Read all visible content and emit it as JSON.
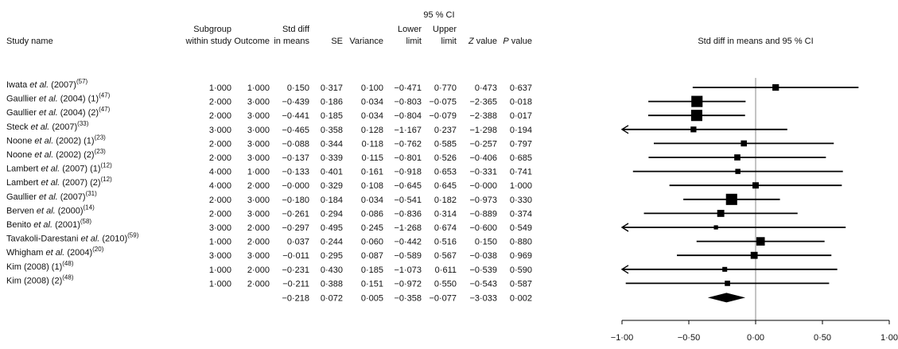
{
  "headers": {
    "ci": "95 % CI",
    "columns": [
      [
        "Study name"
      ],
      [
        "Subgroup",
        "within study"
      ],
      [
        "Outcome"
      ],
      [
        "Std diff",
        "in means"
      ],
      [
        "SE"
      ],
      [
        "Variance"
      ],
      [
        "Lower",
        "limit"
      ],
      [
        "Upper",
        "limit"
      ]
    ],
    "z": {
      "italic": "Z",
      "rest": "value"
    },
    "p": {
      "italic": "P",
      "rest": "value"
    },
    "plot": "Std diff in means and 95 % CI"
  },
  "table": {
    "rows": [
      {
        "study": {
          "name": "Iwata",
          "etal": "et al.",
          "year": "(2007)",
          "sup": "(57)"
        },
        "cells": [
          {
            "value": 1,
            "label": "1·000"
          },
          {
            "value": 1,
            "label": "1·000"
          },
          {
            "value": 0.15,
            "label": "0·150"
          },
          {
            "value": 0.317,
            "label": "0·317"
          },
          {
            "value": 0.1,
            "label": "0·100"
          },
          {
            "value": -0.471,
            "label": "−0·471"
          },
          {
            "value": 0.77,
            "label": "0·770"
          },
          {
            "value": 0.473,
            "label": "0·473"
          },
          {
            "value": 0.637,
            "label": "0·637"
          }
        ]
      },
      {
        "study": {
          "name": "Gaullier",
          "etal": "et al.",
          "year": "(2004) (1)",
          "sup": "(47)"
        },
        "cells": [
          {
            "value": 2,
            "label": "2·000"
          },
          {
            "value": 3,
            "label": "3·000"
          },
          {
            "value": -0.439,
            "label": "−0·439"
          },
          {
            "value": 0.186,
            "label": "0·186"
          },
          {
            "value": 0.034,
            "label": "0·034"
          },
          {
            "value": -0.803,
            "label": "−0·803"
          },
          {
            "value": -0.075,
            "label": "−0·075"
          },
          {
            "value": -2.365,
            "label": "−2·365"
          },
          {
            "value": 0.018,
            "label": "0·018"
          }
        ]
      },
      {
        "study": {
          "name": "Gaullier",
          "etal": "et al.",
          "year": "(2004) (2)",
          "sup": "(47)"
        },
        "cells": [
          {
            "value": 2,
            "label": "2·000"
          },
          {
            "value": 3,
            "label": "3·000"
          },
          {
            "value": -0.441,
            "label": "−0·441"
          },
          {
            "value": 0.185,
            "label": "0·185"
          },
          {
            "value": 0.034,
            "label": "0·034"
          },
          {
            "value": -0.804,
            "label": "−0·804"
          },
          {
            "value": -0.079,
            "label": "−0·079"
          },
          {
            "value": -2.388,
            "label": "−2·388"
          },
          {
            "value": 0.017,
            "label": "0·017"
          }
        ]
      },
      {
        "study": {
          "name": "Steck",
          "etal": "et al.",
          "year": "(2007)",
          "sup": "(33)"
        },
        "cells": [
          {
            "value": 3,
            "label": "3·000"
          },
          {
            "value": 3,
            "label": "3·000"
          },
          {
            "value": -0.465,
            "label": "−0·465"
          },
          {
            "value": 0.358,
            "label": "0·358"
          },
          {
            "value": 0.128,
            "label": "0·128"
          },
          {
            "value": -1.167,
            "label": "−1·167"
          },
          {
            "value": 0.237,
            "label": "0·237"
          },
          {
            "value": -1.298,
            "label": "−1·298"
          },
          {
            "value": 0.194,
            "label": "0·194"
          }
        ]
      },
      {
        "study": {
          "name": "Noone",
          "etal": "et al.",
          "year": "(2002) (1)",
          "sup": "(23)"
        },
        "cells": [
          {
            "value": 2,
            "label": "2·000"
          },
          {
            "value": 3,
            "label": "3·000"
          },
          {
            "value": -0.088,
            "label": "−0·088"
          },
          {
            "value": 0.344,
            "label": "0·344"
          },
          {
            "value": 0.118,
            "label": "0·118"
          },
          {
            "value": -0.762,
            "label": "−0·762"
          },
          {
            "value": 0.585,
            "label": "0·585"
          },
          {
            "value": -0.257,
            "label": "−0·257"
          },
          {
            "value": 0.797,
            "label": "0·797"
          }
        ]
      },
      {
        "study": {
          "name": "Noone",
          "etal": "et al.",
          "year": "(2002) (2)",
          "sup": "(23)"
        },
        "cells": [
          {
            "value": 2,
            "label": "2·000"
          },
          {
            "value": 3,
            "label": "3·000"
          },
          {
            "value": -0.137,
            "label": "−0·137"
          },
          {
            "value": 0.339,
            "label": "0·339"
          },
          {
            "value": 0.115,
            "label": "0·115"
          },
          {
            "value": -0.801,
            "label": "−0·801"
          },
          {
            "value": 0.526,
            "label": "0·526"
          },
          {
            "value": -0.406,
            "label": "−0·406"
          },
          {
            "value": 0.685,
            "label": "0·685"
          }
        ]
      },
      {
        "study": {
          "name": "Lambert",
          "etal": "et al.",
          "year": "(2007) (1)",
          "sup": "(12)"
        },
        "cells": [
          {
            "value": 4,
            "label": "4·000"
          },
          {
            "value": 1,
            "label": "1·000"
          },
          {
            "value": -0.133,
            "label": "−0·133"
          },
          {
            "value": 0.401,
            "label": "0·401"
          },
          {
            "value": 0.161,
            "label": "0·161"
          },
          {
            "value": -0.918,
            "label": "−0·918"
          },
          {
            "value": 0.653,
            "label": "0·653"
          },
          {
            "value": -0.331,
            "label": "−0·331"
          },
          {
            "value": 0.741,
            "label": "0·741"
          }
        ]
      },
      {
        "study": {
          "name": "Lambert",
          "etal": "et al.",
          "year": "(2007) (2)",
          "sup": "(12)"
        },
        "cells": [
          {
            "value": 4,
            "label": "4·000"
          },
          {
            "value": 2,
            "label": "2·000"
          },
          {
            "value": 0,
            "label": "−0·000"
          },
          {
            "value": 0.329,
            "label": "0·329"
          },
          {
            "value": 0.108,
            "label": "0·108"
          },
          {
            "value": -0.645,
            "label": "−0·645"
          },
          {
            "value": 0.645,
            "label": "0·645"
          },
          {
            "value": 0,
            "label": "−0·000"
          },
          {
            "value": 1,
            "label": "1·000"
          }
        ]
      },
      {
        "study": {
          "name": "Gaullier",
          "etal": "et al.",
          "year": "(2007)",
          "sup": "(31)"
        },
        "cells": [
          {
            "value": 2,
            "label": "2·000"
          },
          {
            "value": 3,
            "label": "3·000"
          },
          {
            "value": -0.18,
            "label": "−0·180"
          },
          {
            "value": 0.184,
            "label": "0·184"
          },
          {
            "value": 0.034,
            "label": "0·034"
          },
          {
            "value": -0.541,
            "label": "−0·541"
          },
          {
            "value": 0.182,
            "label": "0·182"
          },
          {
            "value": -0.973,
            "label": "−0·973"
          },
          {
            "value": 0.33,
            "label": "0·330"
          }
        ]
      },
      {
        "study": {
          "name": "Berven",
          "etal": "et al.",
          "year": "(2000)",
          "sup": "(14)"
        },
        "cells": [
          {
            "value": 2,
            "label": "2·000"
          },
          {
            "value": 3,
            "label": "3·000"
          },
          {
            "value": -0.261,
            "label": "−0·261"
          },
          {
            "value": 0.294,
            "label": "0·294"
          },
          {
            "value": 0.086,
            "label": "0·086"
          },
          {
            "value": -0.836,
            "label": "−0·836"
          },
          {
            "value": 0.314,
            "label": "0·314"
          },
          {
            "value": -0.889,
            "label": "−0·889"
          },
          {
            "value": 0.374,
            "label": "0·374"
          }
        ]
      },
      {
        "study": {
          "name": "Benito",
          "etal": "et al.",
          "year": "(2001)",
          "sup": "(58)"
        },
        "cells": [
          {
            "value": 3,
            "label": "3·000"
          },
          {
            "value": 2,
            "label": "2·000"
          },
          {
            "value": -0.297,
            "label": "−0·297"
          },
          {
            "value": 0.495,
            "label": "0·495"
          },
          {
            "value": 0.245,
            "label": "0·245"
          },
          {
            "value": -1.268,
            "label": "−1·268"
          },
          {
            "value": 0.674,
            "label": "0·674"
          },
          {
            "value": -0.6,
            "label": "−0·600"
          },
          {
            "value": 0.549,
            "label": "0·549"
          }
        ]
      },
      {
        "study": {
          "name": "Tavakoli-Darestani",
          "etal": "et al.",
          "year": "(2010)",
          "sup": "(59)"
        },
        "cells": [
          {
            "value": 1,
            "label": "1·000"
          },
          {
            "value": 2,
            "label": "2·000"
          },
          {
            "value": 0.037,
            "label": "0·037"
          },
          {
            "value": 0.244,
            "label": "0·244"
          },
          {
            "value": 0.06,
            "label": "0·060"
          },
          {
            "value": -0.442,
            "label": "−0·442"
          },
          {
            "value": 0.516,
            "label": "0·516"
          },
          {
            "value": 0.15,
            "label": "0·150"
          },
          {
            "value": 0.88,
            "label": "0·880"
          }
        ]
      },
      {
        "study": {
          "name": "Whigham",
          "etal": "et al.",
          "year": "(2004)",
          "sup": "(20)"
        },
        "cells": [
          {
            "value": 3,
            "label": "3·000"
          },
          {
            "value": 3,
            "label": "3·000"
          },
          {
            "value": -0.011,
            "label": "−0·011"
          },
          {
            "value": 0.295,
            "label": "0·295"
          },
          {
            "value": 0.087,
            "label": "0·087"
          },
          {
            "value": -0.589,
            "label": "−0·589"
          },
          {
            "value": 0.567,
            "label": "0·567"
          },
          {
            "value": -0.038,
            "label": "−0·038"
          },
          {
            "value": 0.969,
            "label": "0·969"
          }
        ]
      },
      {
        "study": {
          "name": "Kim",
          "year": "(2008) (1)",
          "sup": "(48)"
        },
        "cells": [
          {
            "value": 1,
            "label": "1·000"
          },
          {
            "value": 2,
            "label": "2·000"
          },
          {
            "value": -0.231,
            "label": "−0·231"
          },
          {
            "value": 0.43,
            "label": "0·430"
          },
          {
            "value": 0.185,
            "label": "0·185"
          },
          {
            "value": -1.073,
            "label": "−1·073"
          },
          {
            "value": 0.611,
            "label": "0·611"
          },
          {
            "value": -0.539,
            "label": "−0·539"
          },
          {
            "value": 0.59,
            "label": "0·590"
          }
        ]
      },
      {
        "study": {
          "name": "Kim",
          "year": "(2008) (2)",
          "sup": "(48)"
        },
        "cells": [
          {
            "value": 1,
            "label": "1·000"
          },
          {
            "value": 2,
            "label": "2·000"
          },
          {
            "value": -0.211,
            "label": "−0·211"
          },
          {
            "value": 0.388,
            "label": "0·388"
          },
          {
            "value": 0.151,
            "label": "0·151"
          },
          {
            "value": -0.972,
            "label": "−0·972"
          },
          {
            "value": 0.55,
            "label": "0·550"
          },
          {
            "value": -0.543,
            "label": "−0·543"
          },
          {
            "value": 0.587,
            "label": "0·587"
          }
        ]
      }
    ],
    "summary": [
      {
        "value": -0.218,
        "label": "−0·218"
      },
      {
        "value": 0.072,
        "label": "0·072"
      },
      {
        "value": 0.005,
        "label": "0·005"
      },
      {
        "value": -0.358,
        "label": "−0·358"
      },
      {
        "value": -0.077,
        "label": "−0·077"
      },
      {
        "value": -3.033,
        "label": "−3·033"
      },
      {
        "value": 0.002,
        "label": "0·002"
      }
    ]
  },
  "plot": {
    "xlim": [
      -1,
      1
    ],
    "xticks": [
      {
        "value": -1,
        "label": "−1·00"
      },
      {
        "value": -0.5,
        "label": "−0·50"
      },
      {
        "value": 0,
        "label": "0·00"
      },
      {
        "value": 0.5,
        "label": "0·50"
      },
      {
        "value": 1,
        "label": "1·00"
      }
    ],
    "color": "#000000"
  }
}
